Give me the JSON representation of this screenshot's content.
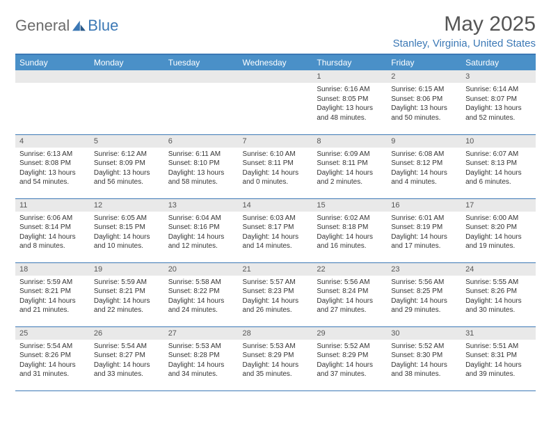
{
  "brand": {
    "part1": "General",
    "part2": "Blue"
  },
  "title": "May 2025",
  "location": "Stanley, Virginia, United States",
  "colors": {
    "header_bg": "#4a90c8",
    "accent": "#3b78b5",
    "daynum_bg": "#e9e9e9",
    "text": "#333333",
    "title_text": "#555555"
  },
  "weekdays": [
    "Sunday",
    "Monday",
    "Tuesday",
    "Wednesday",
    "Thursday",
    "Friday",
    "Saturday"
  ],
  "weeks": [
    [
      null,
      null,
      null,
      null,
      {
        "n": "1",
        "sunrise": "6:16 AM",
        "sunset": "8:05 PM",
        "d1": "13 hours",
        "d2": "and 48 minutes."
      },
      {
        "n": "2",
        "sunrise": "6:15 AM",
        "sunset": "8:06 PM",
        "d1": "13 hours",
        "d2": "and 50 minutes."
      },
      {
        "n": "3",
        "sunrise": "6:14 AM",
        "sunset": "8:07 PM",
        "d1": "13 hours",
        "d2": "and 52 minutes."
      }
    ],
    [
      {
        "n": "4",
        "sunrise": "6:13 AM",
        "sunset": "8:08 PM",
        "d1": "13 hours",
        "d2": "and 54 minutes."
      },
      {
        "n": "5",
        "sunrise": "6:12 AM",
        "sunset": "8:09 PM",
        "d1": "13 hours",
        "d2": "and 56 minutes."
      },
      {
        "n": "6",
        "sunrise": "6:11 AM",
        "sunset": "8:10 PM",
        "d1": "13 hours",
        "d2": "and 58 minutes."
      },
      {
        "n": "7",
        "sunrise": "6:10 AM",
        "sunset": "8:11 PM",
        "d1": "14 hours",
        "d2": "and 0 minutes."
      },
      {
        "n": "8",
        "sunrise": "6:09 AM",
        "sunset": "8:11 PM",
        "d1": "14 hours",
        "d2": "and 2 minutes."
      },
      {
        "n": "9",
        "sunrise": "6:08 AM",
        "sunset": "8:12 PM",
        "d1": "14 hours",
        "d2": "and 4 minutes."
      },
      {
        "n": "10",
        "sunrise": "6:07 AM",
        "sunset": "8:13 PM",
        "d1": "14 hours",
        "d2": "and 6 minutes."
      }
    ],
    [
      {
        "n": "11",
        "sunrise": "6:06 AM",
        "sunset": "8:14 PM",
        "d1": "14 hours",
        "d2": "and 8 minutes."
      },
      {
        "n": "12",
        "sunrise": "6:05 AM",
        "sunset": "8:15 PM",
        "d1": "14 hours",
        "d2": "and 10 minutes."
      },
      {
        "n": "13",
        "sunrise": "6:04 AM",
        "sunset": "8:16 PM",
        "d1": "14 hours",
        "d2": "and 12 minutes."
      },
      {
        "n": "14",
        "sunrise": "6:03 AM",
        "sunset": "8:17 PM",
        "d1": "14 hours",
        "d2": "and 14 minutes."
      },
      {
        "n": "15",
        "sunrise": "6:02 AM",
        "sunset": "8:18 PM",
        "d1": "14 hours",
        "d2": "and 16 minutes."
      },
      {
        "n": "16",
        "sunrise": "6:01 AM",
        "sunset": "8:19 PM",
        "d1": "14 hours",
        "d2": "and 17 minutes."
      },
      {
        "n": "17",
        "sunrise": "6:00 AM",
        "sunset": "8:20 PM",
        "d1": "14 hours",
        "d2": "and 19 minutes."
      }
    ],
    [
      {
        "n": "18",
        "sunrise": "5:59 AM",
        "sunset": "8:21 PM",
        "d1": "14 hours",
        "d2": "and 21 minutes."
      },
      {
        "n": "19",
        "sunrise": "5:59 AM",
        "sunset": "8:21 PM",
        "d1": "14 hours",
        "d2": "and 22 minutes."
      },
      {
        "n": "20",
        "sunrise": "5:58 AM",
        "sunset": "8:22 PM",
        "d1": "14 hours",
        "d2": "and 24 minutes."
      },
      {
        "n": "21",
        "sunrise": "5:57 AM",
        "sunset": "8:23 PM",
        "d1": "14 hours",
        "d2": "and 26 minutes."
      },
      {
        "n": "22",
        "sunrise": "5:56 AM",
        "sunset": "8:24 PM",
        "d1": "14 hours",
        "d2": "and 27 minutes."
      },
      {
        "n": "23",
        "sunrise": "5:56 AM",
        "sunset": "8:25 PM",
        "d1": "14 hours",
        "d2": "and 29 minutes."
      },
      {
        "n": "24",
        "sunrise": "5:55 AM",
        "sunset": "8:26 PM",
        "d1": "14 hours",
        "d2": "and 30 minutes."
      }
    ],
    [
      {
        "n": "25",
        "sunrise": "5:54 AM",
        "sunset": "8:26 PM",
        "d1": "14 hours",
        "d2": "and 31 minutes."
      },
      {
        "n": "26",
        "sunrise": "5:54 AM",
        "sunset": "8:27 PM",
        "d1": "14 hours",
        "d2": "and 33 minutes."
      },
      {
        "n": "27",
        "sunrise": "5:53 AM",
        "sunset": "8:28 PM",
        "d1": "14 hours",
        "d2": "and 34 minutes."
      },
      {
        "n": "28",
        "sunrise": "5:53 AM",
        "sunset": "8:29 PM",
        "d1": "14 hours",
        "d2": "and 35 minutes."
      },
      {
        "n": "29",
        "sunrise": "5:52 AM",
        "sunset": "8:29 PM",
        "d1": "14 hours",
        "d2": "and 37 minutes."
      },
      {
        "n": "30",
        "sunrise": "5:52 AM",
        "sunset": "8:30 PM",
        "d1": "14 hours",
        "d2": "and 38 minutes."
      },
      {
        "n": "31",
        "sunrise": "5:51 AM",
        "sunset": "8:31 PM",
        "d1": "14 hours",
        "d2": "and 39 minutes."
      }
    ]
  ]
}
